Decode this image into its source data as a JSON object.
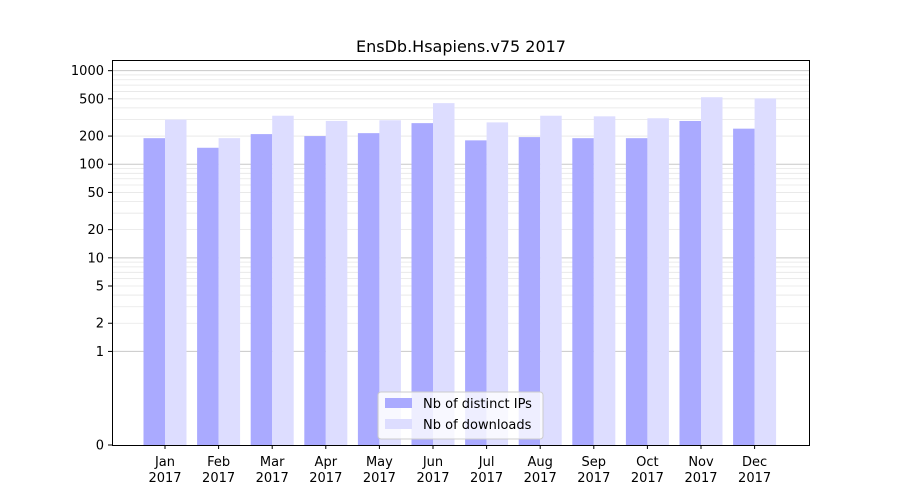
{
  "chart_data": {
    "type": "bar",
    "title": "EnsDb.Hsapiens.v75 2017",
    "xlabel": "",
    "ylabel": "",
    "y_scale": "symlog",
    "ylim": [
      0,
      1300
    ],
    "y_ticks": [
      {
        "value": 0,
        "label": "0"
      },
      {
        "value": 1,
        "label": "1"
      },
      {
        "value": 2,
        "label": "2"
      },
      {
        "value": 5,
        "label": "5"
      },
      {
        "value": 10,
        "label": "10"
      },
      {
        "value": 20,
        "label": "20"
      },
      {
        "value": 50,
        "label": "50"
      },
      {
        "value": 100,
        "label": "100"
      },
      {
        "value": 200,
        "label": "200"
      },
      {
        "value": 500,
        "label": "500"
      },
      {
        "value": 1000,
        "label": "1000"
      }
    ],
    "grid": true,
    "legend_position": "bottom-center",
    "categories": [
      {
        "month": "Jan",
        "year": "2017"
      },
      {
        "month": "Feb",
        "year": "2017"
      },
      {
        "month": "Mar",
        "year": "2017"
      },
      {
        "month": "Apr",
        "year": "2017"
      },
      {
        "month": "May",
        "year": "2017"
      },
      {
        "month": "Jun",
        "year": "2017"
      },
      {
        "month": "Jul",
        "year": "2017"
      },
      {
        "month": "Aug",
        "year": "2017"
      },
      {
        "month": "Sep",
        "year": "2017"
      },
      {
        "month": "Oct",
        "year": "2017"
      },
      {
        "month": "Nov",
        "year": "2017"
      },
      {
        "month": "Dec",
        "year": "2017"
      }
    ],
    "series": [
      {
        "name": "Nb of distinct IPs",
        "color": "#aaaaff",
        "values": [
          190,
          150,
          210,
          200,
          215,
          275,
          180,
          195,
          190,
          190,
          290,
          240
        ]
      },
      {
        "name": "Nb of downloads",
        "color": "#ddddff",
        "values": [
          300,
          190,
          330,
          290,
          295,
          450,
          280,
          330,
          325,
          310,
          520,
          505
        ]
      }
    ]
  }
}
